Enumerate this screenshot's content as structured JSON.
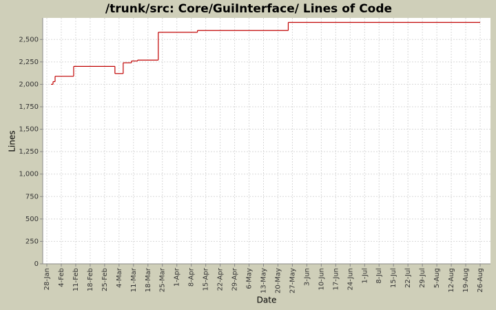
{
  "chart_data": {
    "type": "line",
    "step": true,
    "title": "/trunk/src: Core/GuiInterface/ Lines of Code",
    "x_label": "Date",
    "y_label": "Lines",
    "x": [
      "30-Jan",
      "31-Jan",
      "1-Feb",
      "10-Feb",
      "2-Mar",
      "6-Mar",
      "10-Mar",
      "13-Mar",
      "23-Mar",
      "11-Apr",
      "25-May",
      "26-Aug"
    ],
    "series": [
      {
        "name": "Lines",
        "color": "#c00000",
        "values": [
          2000,
          2030,
          2090,
          2200,
          2120,
          2240,
          2260,
          2270,
          2580,
          2600,
          2690,
          2690
        ]
      }
    ],
    "xlim": [
      "26-Jan",
      "31-Aug"
    ],
    "xticks": [
      "28-Jan",
      "4-Feb",
      "11-Feb",
      "18-Feb",
      "25-Feb",
      "4-Mar",
      "11-Mar",
      "18-Mar",
      "25-Mar",
      "1-Apr",
      "8-Apr",
      "15-Apr",
      "22-Apr",
      "29-Apr",
      "6-May",
      "13-May",
      "20-May",
      "27-May",
      "3-Jun",
      "10-Jun",
      "17-Jun",
      "24-Jun",
      "1-Jul",
      "8-Jul",
      "15-Jul",
      "22-Jul",
      "29-Jul",
      "5-Aug",
      "12-Aug",
      "19-Aug",
      "26-Aug"
    ],
    "ylim": [
      0,
      2740
    ],
    "yticks": [
      0,
      250,
      500,
      750,
      {
        "value": 1000,
        "label": "1,000"
      },
      {
        "value": 1250,
        "label": "1,250"
      },
      {
        "value": 1500,
        "label": "1,500"
      },
      {
        "value": 1750,
        "label": "1,750"
      },
      {
        "value": 2000,
        "label": "2,000"
      },
      {
        "value": 2250,
        "label": "2,250"
      },
      {
        "value": 2500,
        "label": "2,500"
      }
    ],
    "grid": true
  }
}
